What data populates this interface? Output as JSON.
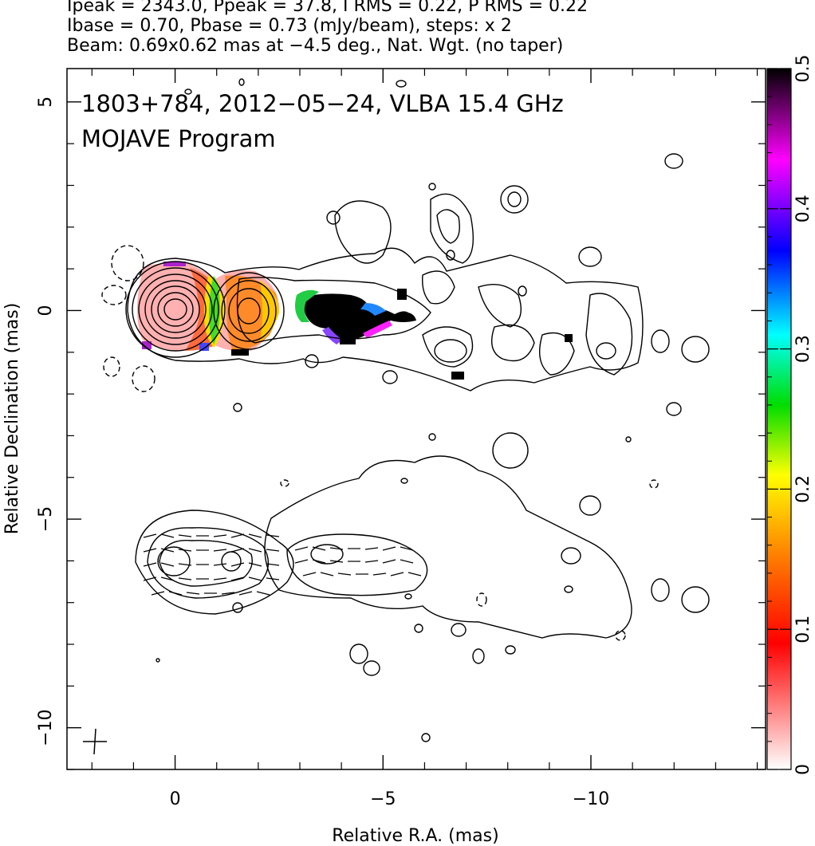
{
  "header": {
    "line1": "Ipeak = 2343.0, Ppeak = 37.8, I RMS = 0.22, P RMS = 0.22",
    "line2": "Ibase = 0.70, Pbase = 0.73 (mJy/beam), steps: x 2",
    "line3": "Beam: 0.69x0.62 mas at −4.5 deg., Nat. Wgt. (no taper)"
  },
  "chart_data": {
    "type": "heatmap",
    "title": "1803+784, 2012−05−24, VLBA 15.4 GHz",
    "subtitle": "MOJAVE Program",
    "xlabel": "Relative R.A. (mas)",
    "ylabel": "Relative Declination (mas)",
    "xlim": [
      2.6,
      -14.2
    ],
    "ylim": [
      -11.0,
      5.8
    ],
    "x_ticks": [
      0,
      -5,
      -10
    ],
    "x_tick_labels": [
      "0",
      "−5",
      "−10"
    ],
    "y_ticks": [
      5,
      0,
      -5,
      -10
    ],
    "y_tick_labels": [
      "5",
      "0",
      "−5",
      "−10"
    ],
    "colorbar": {
      "range": [
        0,
        0.5
      ],
      "ticks": [
        0,
        0.1,
        0.2,
        0.3,
        0.4,
        0.5
      ],
      "tick_labels": [
        "0",
        "0.1",
        "0.2",
        "0.3",
        "0.4",
        "0.5"
      ],
      "colors": [
        "#ffffff",
        "#ff8c8c",
        "#ff0000",
        "#ff7a00",
        "#ffff00",
        "#00dd00",
        "#00ffff",
        "#0000ff",
        "#ff00ff",
        "#000000"
      ]
    },
    "core": {
      "x": 0,
      "y": 0,
      "peak": 2343.0
    },
    "knots": [
      {
        "x": -1.5,
        "y": 0.0
      },
      {
        "x": -4.0,
        "y": -0.2
      }
    ],
    "lower_map_offset_mas": -6.0,
    "beam": {
      "major": 0.69,
      "minor": 0.62,
      "pa_deg": -4.5
    },
    "grid": false
  }
}
